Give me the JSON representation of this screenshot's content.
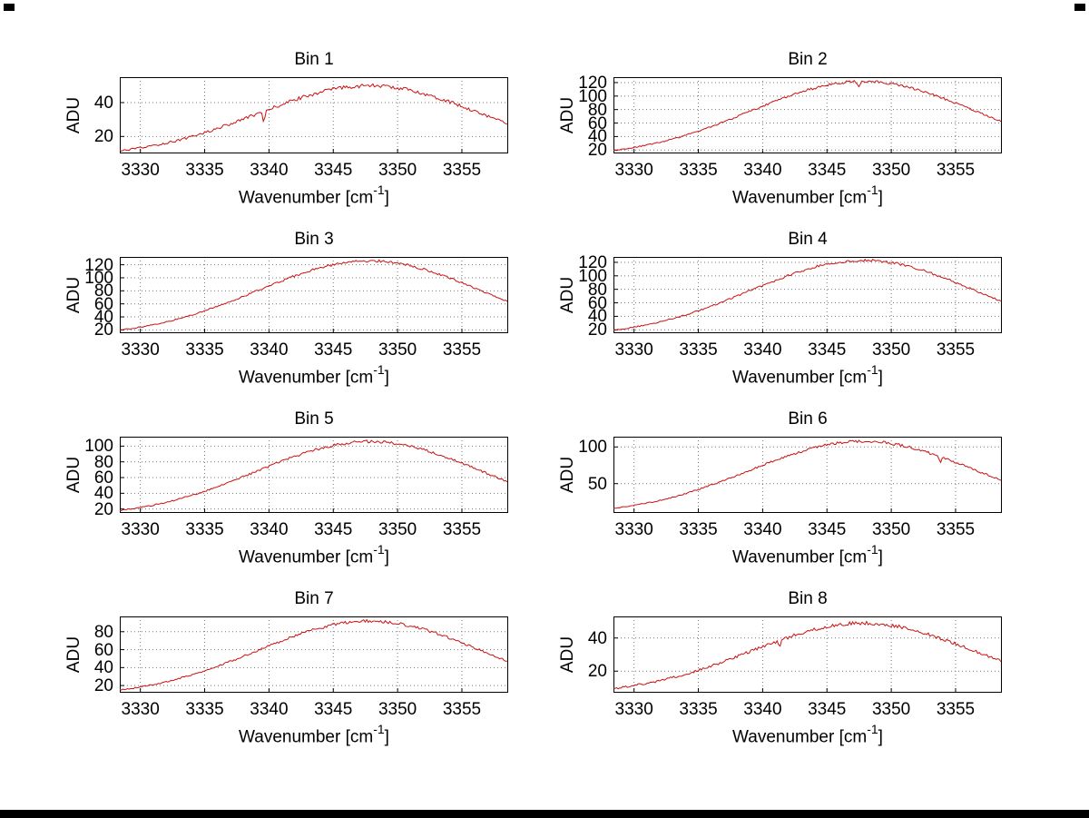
{
  "figure": {
    "background": "#ffffff",
    "line_color": "#cc1111",
    "grid_color": "#777777",
    "axis_color": "#000000",
    "bottom_bar_color": "#000000"
  },
  "labels": {
    "xlabel_base": "Wavenumber [cm",
    "xlabel_sup": "-1",
    "xlabel_close": "]"
  },
  "chart_data": [
    {
      "type": "line",
      "title": "Bin 1",
      "ylabel": "ADU",
      "xlim": [
        3328.4,
        3358.6
      ],
      "ylim": [
        10,
        55
      ],
      "xticks": [
        3330,
        3335,
        3340,
        3345,
        3350,
        3355
      ],
      "yticks": [
        20,
        40
      ],
      "x_start": 3328.5,
      "x_step": 1,
      "values": [
        11.6,
        12.6,
        13.8,
        15.3,
        17,
        18.9,
        21.1,
        23.5,
        26.1,
        28.8,
        31.7,
        34.6,
        37.5,
        40.3,
        42.9,
        45.2,
        47.1,
        48.6,
        49.5,
        50,
        49.9,
        49.2,
        48,
        46.4,
        44.3,
        41.9,
        39.2,
        36.4,
        33.5,
        30.6,
        27.7
      ],
      "dips": [
        {
          "x": 3339.6,
          "depth": 7
        }
      ]
    },
    {
      "type": "line",
      "title": "Bin 2",
      "ylabel": "ADU",
      "xlim": [
        3328.4,
        3358.6
      ],
      "ylim": [
        15,
        128
      ],
      "xticks": [
        3330,
        3335,
        3340,
        3345,
        3350,
        3355
      ],
      "yticks": [
        20,
        40,
        60,
        80,
        100,
        120
      ],
      "x_start": 3328.5,
      "x_step": 1,
      "values": [
        19.5,
        22.3,
        25.6,
        29.4,
        33.9,
        39,
        44.8,
        51.2,
        58.2,
        65.6,
        73.3,
        81,
        88.8,
        96.2,
        103.1,
        109.1,
        114.2,
        118.2,
        120.8,
        121.9,
        121.6,
        119.9,
        116.7,
        112.3,
        106.8,
        100.4,
        93.3,
        85.7,
        78,
        70.1,
        62.6
      ],
      "dips": [
        {
          "x": 3347.5,
          "depth": 9
        }
      ]
    },
    {
      "type": "line",
      "title": "Bin 3",
      "ylabel": "ADU",
      "xlim": [
        3328.4,
        3358.6
      ],
      "ylim": [
        15,
        132
      ],
      "xticks": [
        3330,
        3335,
        3340,
        3345,
        3350,
        3355
      ],
      "yticks": [
        20,
        40,
        60,
        80,
        100,
        120
      ],
      "x_start": 3328.5,
      "x_step": 1,
      "values": [
        19.9,
        22.8,
        26.1,
        30.1,
        34.7,
        40,
        46.1,
        52.7,
        59.9,
        67.5,
        75.5,
        83.6,
        91.6,
        99.3,
        106.4,
        112.7,
        118,
        122.1,
        124.7,
        125.9,
        125.6,
        123.8,
        120.5,
        116,
        110.2,
        103.6,
        96.2,
        88.4,
        80.4,
        72.3,
        64.5
      ],
      "dips": []
    },
    {
      "type": "line",
      "title": "Bin 4",
      "ylabel": "ADU",
      "xlim": [
        3328.4,
        3358.6
      ],
      "ylim": [
        15,
        128
      ],
      "xticks": [
        3330,
        3335,
        3340,
        3345,
        3350,
        3355
      ],
      "yticks": [
        20,
        40,
        60,
        80,
        100,
        120
      ],
      "x_start": 3328.5,
      "x_step": 1,
      "values": [
        19.6,
        22.4,
        25.7,
        29.5,
        34.1,
        39.3,
        45.1,
        51.6,
        58.6,
        66.1,
        73.8,
        81.7,
        89.4,
        97,
        103.9,
        110,
        115.2,
        119.2,
        121.7,
        122.9,
        122.7,
        120.9,
        117.7,
        113.2,
        107.7,
        101.2,
        94,
        86.4,
        78.6,
        70.7,
        63.1
      ],
      "dips": []
    },
    {
      "type": "line",
      "title": "Bin 5",
      "ylabel": "ADU",
      "xlim": [
        3328.4,
        3358.6
      ],
      "ylim": [
        15,
        112
      ],
      "xticks": [
        3330,
        3335,
        3340,
        3345,
        3350,
        3355
      ],
      "yticks": [
        20,
        40,
        60,
        80,
        100
      ],
      "x_start": 3328.5,
      "x_step": 1,
      "values": [
        18.2,
        20.6,
        23.3,
        26.6,
        30.5,
        34.9,
        39.9,
        45.3,
        51.3,
        57.6,
        64.2,
        70.9,
        77.5,
        83.9,
        89.7,
        95,
        99.3,
        102.7,
        104.9,
        105.9,
        105.7,
        104.2,
        101.5,
        97.7,
        93,
        87.5,
        81.4,
        74.9,
        68.2,
        61.6,
        55.1
      ],
      "dips": []
    },
    {
      "type": "line",
      "title": "Bin 6",
      "ylabel": "ADU",
      "xlim": [
        3328.4,
        3358.6
      ],
      "ylim": [
        10,
        114
      ],
      "xticks": [
        3330,
        3335,
        3340,
        3345,
        3350,
        3355
      ],
      "yticks": [
        50,
        100
      ],
      "x_start": 3328.5,
      "x_step": 1,
      "values": [
        16.5,
        19,
        21.9,
        25.3,
        29.3,
        33.9,
        39.1,
        44.8,
        51,
        57.6,
        64.5,
        71.4,
        78.3,
        85,
        91.1,
        96.5,
        101.1,
        104.6,
        106.9,
        107.9,
        107.7,
        106.1,
        103.3,
        99.4,
        94.4,
        88.7,
        82.3,
        75.6,
        68.7,
        61.7,
        55
      ],
      "dips": [
        {
          "x": 3353.8,
          "depth": 8
        }
      ]
    },
    {
      "type": "line",
      "title": "Bin 7",
      "ylabel": "ADU",
      "xlim": [
        3328.4,
        3358.6
      ],
      "ylim": [
        12,
        97
      ],
      "xticks": [
        3330,
        3335,
        3340,
        3345,
        3350,
        3355
      ],
      "yticks": [
        20,
        40,
        60,
        80
      ],
      "x_start": 3328.5,
      "x_step": 1,
      "values": [
        15.1,
        17.2,
        19.7,
        22.5,
        25.9,
        29.8,
        34.1,
        38.9,
        44.2,
        49.7,
        55.4,
        61.3,
        67.1,
        72.7,
        77.8,
        82.3,
        86.2,
        89.1,
        91.1,
        91.9,
        91.7,
        90.4,
        88,
        84.7,
        80.6,
        75.8,
        70.4,
        64.8,
        59,
        53.1,
        47.4
      ],
      "dips": []
    },
    {
      "type": "line",
      "title": "Bin 8",
      "ylabel": "ADU",
      "xlim": [
        3328.4,
        3358.6
      ],
      "ylim": [
        7,
        53
      ],
      "xticks": [
        3330,
        3335,
        3340,
        3345,
        3350,
        3355
      ],
      "yticks": [
        20,
        40
      ],
      "x_start": 3328.5,
      "x_step": 1,
      "values": [
        9.7,
        10.7,
        12,
        13.4,
        15.2,
        17.1,
        19.4,
        21.8,
        24.5,
        27.3,
        30.3,
        33.3,
        36.2,
        39.1,
        41.7,
        44.1,
        46,
        47.5,
        48.5,
        49,
        48.9,
        48.2,
        47,
        45.3,
        43.2,
        40.7,
        38,
        35.1,
        32.1,
        29.1,
        26.2
      ],
      "dips": [
        {
          "x": 3341.3,
          "depth": 4
        }
      ]
    }
  ]
}
